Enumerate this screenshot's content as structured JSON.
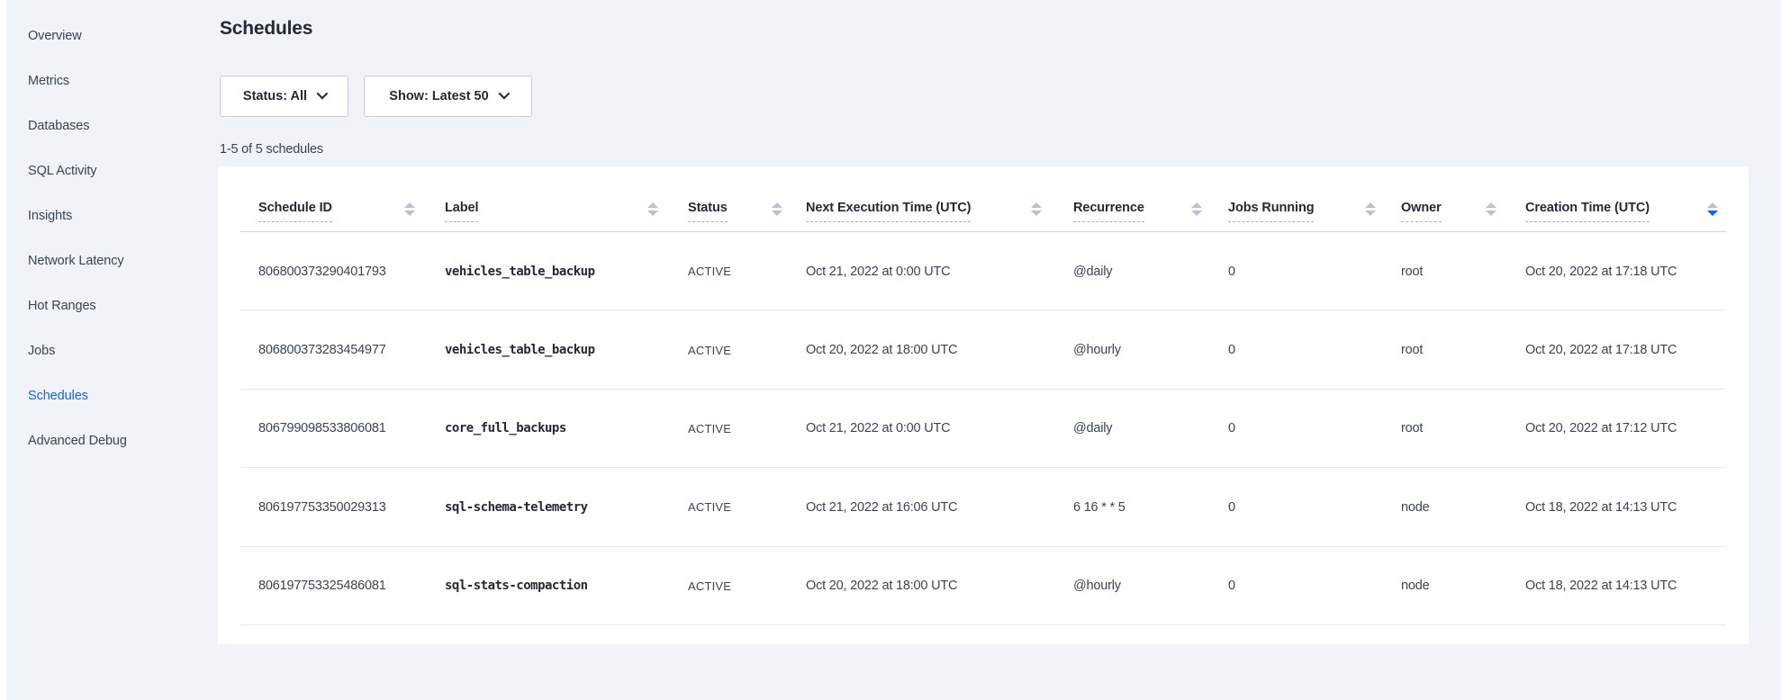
{
  "sidebar": {
    "items": [
      {
        "label": "Overview",
        "active": false
      },
      {
        "label": "Metrics",
        "active": false
      },
      {
        "label": "Databases",
        "active": false
      },
      {
        "label": "SQL Activity",
        "active": false
      },
      {
        "label": "Insights",
        "active": false
      },
      {
        "label": "Network Latency",
        "active": false
      },
      {
        "label": "Hot Ranges",
        "active": false
      },
      {
        "label": "Jobs",
        "active": false
      },
      {
        "label": "Schedules",
        "active": true
      },
      {
        "label": "Advanced Debug",
        "active": false
      }
    ]
  },
  "page": {
    "title": "Schedules"
  },
  "filters": {
    "status_label": "Status: All",
    "show_label": "Show: Latest 50",
    "chevron_icon": "chevron-down-icon"
  },
  "results_count": "1-5 of 5 schedules",
  "table": {
    "columns": [
      {
        "label": "Schedule ID",
        "sort": "none"
      },
      {
        "label": "Label",
        "sort": "none"
      },
      {
        "label": "Status",
        "sort": "none"
      },
      {
        "label": "Next Execution Time (UTC)",
        "sort": "none"
      },
      {
        "label": "Recurrence",
        "sort": "none"
      },
      {
        "label": "Jobs Running",
        "sort": "none"
      },
      {
        "label": "Owner",
        "sort": "none"
      },
      {
        "label": "Creation Time (UTC)",
        "sort": "desc"
      }
    ],
    "rows": [
      {
        "id": "806800373290401793",
        "label": "vehicles_table_backup",
        "status": "ACTIVE",
        "next_execution": "Oct 21, 2022 at 0:00 UTC",
        "recurrence": "@daily",
        "jobs_running": "0",
        "owner": "root",
        "creation_time": "Oct 20, 2022 at 17:18 UTC"
      },
      {
        "id": "806800373283454977",
        "label": "vehicles_table_backup",
        "status": "ACTIVE",
        "next_execution": "Oct 20, 2022 at 18:00 UTC",
        "recurrence": "@hourly",
        "jobs_running": "0",
        "owner": "root",
        "creation_time": "Oct 20, 2022 at 17:18 UTC"
      },
      {
        "id": "806799098533806081",
        "label": "core_full_backups",
        "status": "ACTIVE",
        "next_execution": "Oct 21, 2022 at 0:00 UTC",
        "recurrence": "@daily",
        "jobs_running": "0",
        "owner": "root",
        "creation_time": "Oct 20, 2022 at 17:12 UTC"
      },
      {
        "id": "806197753350029313",
        "label": "sql-schema-telemetry",
        "status": "ACTIVE",
        "next_execution": "Oct 21, 2022 at 16:06 UTC",
        "recurrence": "6 16 * * 5",
        "jobs_running": "0",
        "owner": "node",
        "creation_time": "Oct 18, 2022 at 14:13 UTC"
      },
      {
        "id": "806197753325486081",
        "label": "sql-stats-compaction",
        "status": "ACTIVE",
        "next_execution": "Oct 20, 2022 at 18:00 UTC",
        "recurrence": "@hourly",
        "jobs_running": "0",
        "owner": "node",
        "creation_time": "Oct 18, 2022 at 14:13 UTC"
      }
    ]
  },
  "colors": {
    "accent_blue": "#1063ff",
    "background": "#f0f4f8",
    "card": "#ffffff",
    "text_dark": "#242a35",
    "text_body": "#394455",
    "sort_arrow_inactive": "#b9c2d3"
  }
}
